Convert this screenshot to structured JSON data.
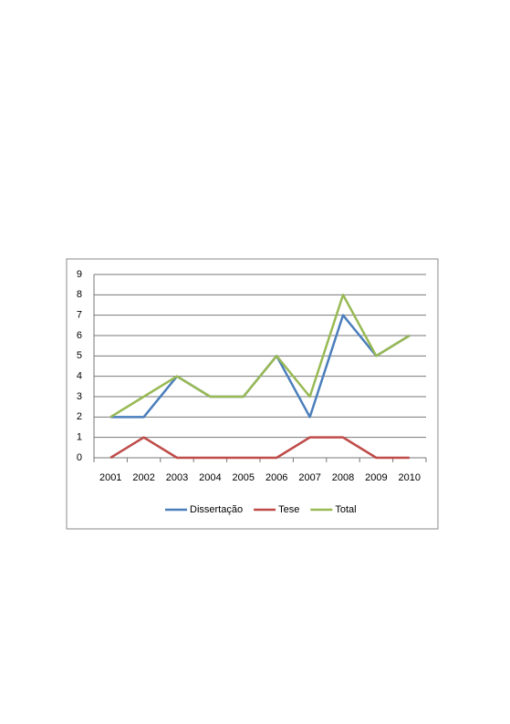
{
  "chart_data": {
    "type": "line",
    "categories": [
      "2001",
      "2002",
      "2003",
      "2004",
      "2005",
      "2006",
      "2007",
      "2008",
      "2009",
      "2010"
    ],
    "series": [
      {
        "name": "Dissertação",
        "color": "#4a7ebb",
        "values": [
          2,
          2,
          4,
          3,
          3,
          5,
          2,
          7,
          5,
          6
        ]
      },
      {
        "name": "Tese",
        "color": "#be4b48",
        "values": [
          0,
          1,
          0,
          0,
          0,
          0,
          1,
          1,
          0,
          0
        ]
      },
      {
        "name": "Total",
        "color": "#98b954",
        "values": [
          2,
          3,
          4,
          3,
          3,
          5,
          3,
          8,
          5,
          6
        ]
      }
    ],
    "ylim": [
      0,
      9
    ],
    "yticks": [
      0,
      1,
      2,
      3,
      4,
      5,
      6,
      7,
      8,
      9
    ],
    "grid": true,
    "legend": "bottom"
  }
}
